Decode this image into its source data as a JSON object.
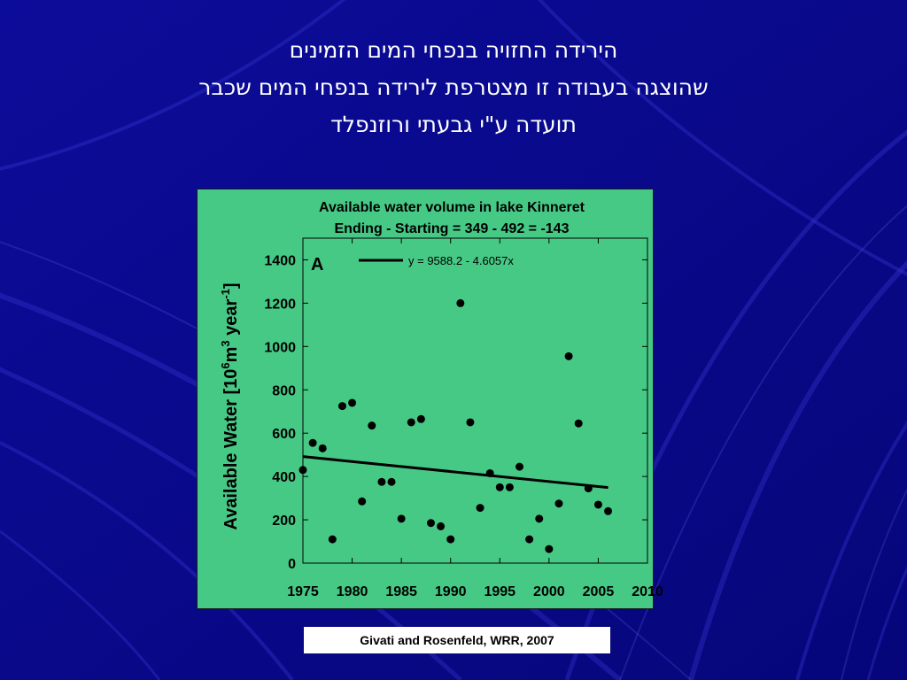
{
  "slide": {
    "title_lines": [
      "הירידה החזויה בנפחי המים הזמינים",
      "שהוצגה בעבודה זו מצטרפת לירידה בנפחי המים שכבר",
      "תועדה ע\"י גבעתי ורוזנפלד"
    ],
    "citation": "Givati and Rosenfeld, WRR, 2007"
  },
  "colors": {
    "background": "#0a0a8c",
    "panel": "#47c986",
    "points": "#000000",
    "trend_line": "#000000"
  },
  "chart_data": {
    "type": "scatter",
    "title": "Available water volume in lake Kinneret",
    "subtitle": "Ending - Starting = 349 - 492 = -143",
    "panel_label": "A",
    "ylabel_parts": [
      "Available Water [10",
      "6",
      "m",
      "3",
      " year",
      "-1",
      "]"
    ],
    "xlim": [
      1975,
      2010
    ],
    "ylim": [
      0,
      1500
    ],
    "xticks": [
      1975,
      1980,
      1985,
      1990,
      1995,
      2000,
      2005,
      2010
    ],
    "yticks": [
      0,
      200,
      400,
      600,
      800,
      1000,
      1200,
      1400
    ],
    "grid": false,
    "legend": {
      "label": "y = 9588.2 - 4.6057x",
      "position": "top-left"
    },
    "trend": {
      "intercept": 9588.2,
      "slope": -4.6057,
      "x_range": [
        1975,
        2006
      ]
    },
    "series": [
      {
        "x": [
          1975,
          1976,
          1977,
          1978,
          1979,
          1980,
          1981,
          1982,
          1983,
          1984,
          1985,
          1986,
          1987,
          1988,
          1989,
          1990,
          1991,
          1992,
          1993,
          1994,
          1995,
          1996,
          1997,
          1998,
          1999,
          2000,
          2001,
          2002,
          2003,
          2004,
          2005,
          2006
        ],
        "y": [
          430,
          555,
          530,
          110,
          725,
          740,
          285,
          635,
          375,
          375,
          205,
          650,
          665,
          185,
          170,
          110,
          1200,
          650,
          255,
          415,
          350,
          350,
          445,
          110,
          205,
          65,
          275,
          955,
          645,
          345,
          270,
          240
        ]
      }
    ]
  }
}
